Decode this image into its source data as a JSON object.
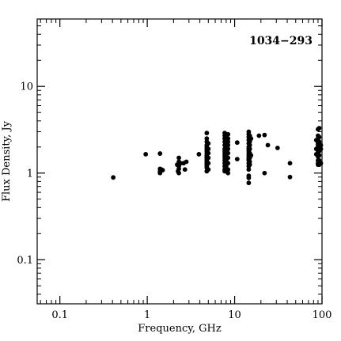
{
  "chart_data": {
    "type": "scatter",
    "title": "1034−293",
    "xlabel": "Frequency, GHz",
    "ylabel": "Flux Density, Jy",
    "x_scale": "log",
    "y_scale": "log",
    "xlim": [
      0.055,
      100
    ],
    "ylim": [
      0.031,
      60
    ],
    "x_ticks": [
      0.1,
      1,
      10,
      100
    ],
    "x_tick_labels": [
      "0.1",
      "1",
      "10",
      "100"
    ],
    "y_ticks": [
      0.1,
      1,
      10
    ],
    "y_tick_labels": [
      "0.1",
      "1",
      "10"
    ],
    "grid": false,
    "legend": "none",
    "marker_color": "#000000",
    "points": [
      [
        0.408,
        0.89
      ],
      [
        0.96,
        1.65
      ],
      [
        1.4,
        1.68
      ],
      [
        1.4,
        1.12
      ],
      [
        1.4,
        1.05
      ],
      [
        1.4,
        1.0
      ],
      [
        1.45,
        1.1
      ],
      [
        1.5,
        1.08
      ],
      [
        2.2,
        1.25
      ],
      [
        2.25,
        1.05
      ],
      [
        2.3,
        1.5
      ],
      [
        2.3,
        1.35
      ],
      [
        2.3,
        1.2
      ],
      [
        2.3,
        1.12
      ],
      [
        2.3,
        1.0
      ],
      [
        2.35,
        1.28
      ],
      [
        2.4,
        1.3
      ],
      [
        2.6,
        1.3
      ],
      [
        2.7,
        1.1
      ],
      [
        2.8,
        1.35
      ],
      [
        3.9,
        1.65
      ],
      [
        4.8,
        2.9
      ],
      [
        4.8,
        2.5
      ],
      [
        4.8,
        2.3
      ],
      [
        4.8,
        2.1
      ],
      [
        4.8,
        2.0
      ],
      [
        4.8,
        1.9
      ],
      [
        4.8,
        1.8
      ],
      [
        4.8,
        1.7
      ],
      [
        4.8,
        1.6
      ],
      [
        4.8,
        1.55
      ],
      [
        4.8,
        1.5
      ],
      [
        4.8,
        1.45
      ],
      [
        4.8,
        1.4
      ],
      [
        4.8,
        1.35
      ],
      [
        4.8,
        1.3
      ],
      [
        4.8,
        1.25
      ],
      [
        4.8,
        1.2
      ],
      [
        4.8,
        1.15
      ],
      [
        4.8,
        1.05
      ],
      [
        5.0,
        2.2
      ],
      [
        5.0,
        1.9
      ],
      [
        5.0,
        1.7
      ],
      [
        5.0,
        1.5
      ],
      [
        5.0,
        1.3
      ],
      [
        5.0,
        1.1
      ],
      [
        7.7,
        2.9
      ],
      [
        7.7,
        2.7
      ],
      [
        7.7,
        2.5
      ],
      [
        7.7,
        2.3
      ],
      [
        7.7,
        2.1
      ],
      [
        7.7,
        1.9
      ],
      [
        7.7,
        1.8
      ],
      [
        7.7,
        1.7
      ],
      [
        7.7,
        1.6
      ],
      [
        7.7,
        1.5
      ],
      [
        7.7,
        1.4
      ],
      [
        7.7,
        1.3
      ],
      [
        7.7,
        1.2
      ],
      [
        7.7,
        1.1
      ],
      [
        7.7,
        1.05
      ],
      [
        8.0,
        2.6
      ],
      [
        8.0,
        2.4
      ],
      [
        8.0,
        2.2
      ],
      [
        8.0,
        2.0
      ],
      [
        8.0,
        1.8
      ],
      [
        8.0,
        1.6
      ],
      [
        8.0,
        1.4
      ],
      [
        8.0,
        1.2
      ],
      [
        8.4,
        2.8
      ],
      [
        8.4,
        2.5
      ],
      [
        8.4,
        2.3
      ],
      [
        8.4,
        2.1
      ],
      [
        8.4,
        1.9
      ],
      [
        8.4,
        1.7
      ],
      [
        8.4,
        1.5
      ],
      [
        8.4,
        1.3
      ],
      [
        8.4,
        1.1
      ],
      [
        8.4,
        1.0
      ],
      [
        10.7,
        2.25
      ],
      [
        10.7,
        1.45
      ],
      [
        14.5,
        3.0
      ],
      [
        14.5,
        2.8
      ],
      [
        14.5,
        2.6
      ],
      [
        14.5,
        2.4
      ],
      [
        14.5,
        2.2
      ],
      [
        14.5,
        2.0
      ],
      [
        14.5,
        1.9
      ],
      [
        14.5,
        1.8
      ],
      [
        14.5,
        1.7
      ],
      [
        14.5,
        1.6
      ],
      [
        14.5,
        1.5
      ],
      [
        14.5,
        1.45
      ],
      [
        14.5,
        1.4
      ],
      [
        14.5,
        1.3
      ],
      [
        14.5,
        1.2
      ],
      [
        14.5,
        1.1
      ],
      [
        14.5,
        0.93
      ],
      [
        14.5,
        0.88
      ],
      [
        14.5,
        0.77
      ],
      [
        14.9,
        2.7
      ],
      [
        14.9,
        2.3
      ],
      [
        14.9,
        2.1
      ],
      [
        14.9,
        1.9
      ],
      [
        14.9,
        1.7
      ],
      [
        14.9,
        1.5
      ],
      [
        14.9,
        1.35
      ],
      [
        14.9,
        1.25
      ],
      [
        15.4,
        2.5
      ],
      [
        15.4,
        1.6
      ],
      [
        19.0,
        2.7
      ],
      [
        22.0,
        2.75
      ],
      [
        22.0,
        1.0
      ],
      [
        24.0,
        2.1
      ],
      [
        31.0,
        1.95
      ],
      [
        43.0,
        1.3
      ],
      [
        43.0,
        0.9
      ],
      [
        86.0,
        1.9
      ],
      [
        86.0,
        2.4
      ],
      [
        86.0,
        1.65
      ],
      [
        90.0,
        3.2
      ],
      [
        90.0,
        2.7
      ],
      [
        90.0,
        2.5
      ],
      [
        90.0,
        2.3
      ],
      [
        90.0,
        2.2
      ],
      [
        90.0,
        2.1
      ],
      [
        90.0,
        2.0
      ],
      [
        90.0,
        1.9
      ],
      [
        90.0,
        1.8
      ],
      [
        90.0,
        1.7
      ],
      [
        90.0,
        1.55
      ],
      [
        90.0,
        1.4
      ],
      [
        90.0,
        1.3
      ],
      [
        90.0,
        1.25
      ],
      [
        93.0,
        3.3
      ],
      [
        93.0,
        2.6
      ],
      [
        93.0,
        2.3
      ],
      [
        93.0,
        2.0
      ],
      [
        93.0,
        1.8
      ],
      [
        93.0,
        1.6
      ],
      [
        93.0,
        1.4
      ],
      [
        93.0,
        1.25
      ],
      [
        97.0,
        2.1
      ],
      [
        97.0,
        1.9
      ],
      [
        97.0,
        1.3
      ]
    ]
  }
}
